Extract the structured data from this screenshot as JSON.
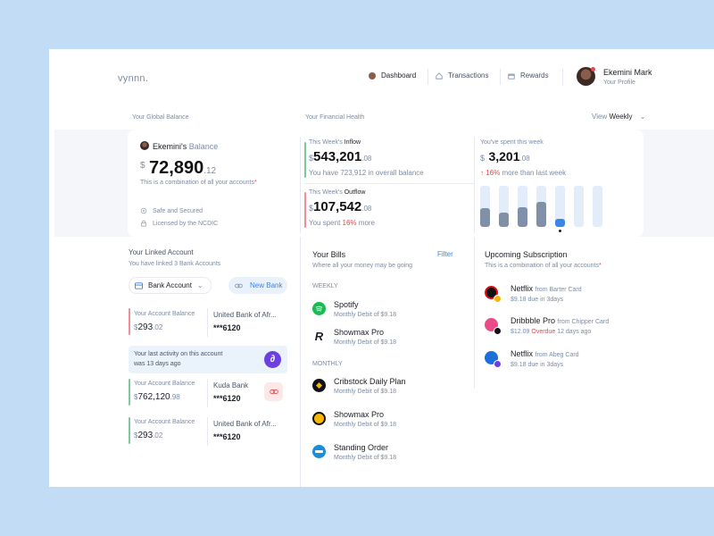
{
  "brand": "vynnn.",
  "nav": {
    "dashboard": "Dashboard",
    "transactions": "Transactions",
    "rewards": "Rewards"
  },
  "profile": {
    "name": "Ekemini Mark",
    "sub": "Your Profile"
  },
  "sections": {
    "global_balance": "Your Global Balance",
    "financial_health": "Your Financial Health",
    "view_label": "View",
    "view_value": "Weekly"
  },
  "balance": {
    "title_name": "Ekemini's",
    "title_word": "Balance",
    "currency": "$",
    "amount": "72,890",
    "cents": ".12",
    "note": "This is a combination of all your accounts",
    "star": "*",
    "safe": "Safe and Secured",
    "licensed": "Licensed by the NCDIC"
  },
  "inflow": {
    "label_a": "This Week's",
    "label_b": "Inflow",
    "currency": "$",
    "amount": "543,201",
    "cents": ".08",
    "note_a": "You have",
    "note_b": "723,912",
    "note_c": "in overall balance"
  },
  "outflow": {
    "label_a": "This Week's",
    "label_b": "Outflow",
    "currency": "$",
    "amount": "107,542",
    "cents": ".08",
    "note_a": "You spent",
    "note_b": "16%",
    "note_c": "more"
  },
  "spent": {
    "label": "You've spent this week",
    "currency": "$",
    "amount": "3,201",
    "cents": ".08",
    "arrow": "↑",
    "pct": "16%",
    "note": "more than last week"
  },
  "weekly_levels": [
    0.45,
    0.35,
    0.48,
    0.6,
    0.2,
    0,
    0
  ],
  "colors": {
    "accent": "#3a86e8",
    "bar_dark": "#7f90a8",
    "bar_bg": "#e2edf9",
    "danger": "#e5484d",
    "green": "#7ec99b"
  },
  "linked": {
    "title": "Your Linked Account",
    "sub": "You have linked 3 Bank Accounts",
    "dropdown": "Bank Account",
    "new_bank": "New Bank",
    "balance_label": "Your Account Balance",
    "accounts": [
      {
        "currency": "$",
        "amount": "293",
        "cents": ".02",
        "bank": "United Bank of Afr...",
        "number": "***6120"
      },
      {
        "currency": "$",
        "amount": "762,120",
        "cents": ".98",
        "bank": "Kuda Bank",
        "number": "***6120"
      },
      {
        "currency": "$",
        "amount": "293",
        "cents": ".02",
        "bank": "United Bank of Afr...",
        "number": "***6120"
      }
    ],
    "activity_a": "Your last activity on this account",
    "activity_b": "was 13 days ago"
  },
  "bills": {
    "title": "Your Bills",
    "filter": "Filter",
    "sub": "Where all your money may be going",
    "weekly": "WEEKLY",
    "monthly": "MONTHLY",
    "items": [
      {
        "name": "Spotify",
        "sub": "Monthly Debit of $9.18"
      },
      {
        "name": "Showmax Pro",
        "sub": "Monthly Debit of $9.18"
      },
      {
        "name": "Cribstock Daily Plan",
        "sub": "Monthly Debit of $9.18"
      },
      {
        "name": "Showmax Pro",
        "sub": "Monthly Debit of $9.18"
      },
      {
        "name": "Standing Order",
        "sub": "Monthly Debit of $9.18"
      }
    ]
  },
  "subs": {
    "title": "Upcoming Subscription",
    "sub": "This is a combination of all your accounts",
    "star": "*",
    "items": [
      {
        "name": "Netflix",
        "from": "from Barter Card",
        "amount": "$9.18",
        "due": "due in 3days",
        "overdue": ""
      },
      {
        "name": "Dribbble Pro",
        "from": "from Chipper Card",
        "amount": "$12.09",
        "due": "12 days ago",
        "overdue": "Overdue"
      },
      {
        "name": "Netflix",
        "from": "from Abeg Card",
        "amount": "$9.18",
        "due": "due in 3days",
        "overdue": ""
      }
    ]
  }
}
